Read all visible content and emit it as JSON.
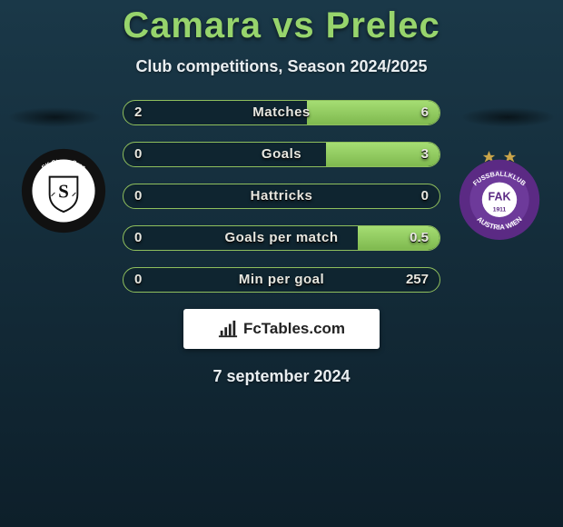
{
  "title": "Camara vs Prelec",
  "subtitle": "Club competitions, Season 2024/2025",
  "date": "7 september 2024",
  "brand": {
    "text": "FcTables.com"
  },
  "colors": {
    "accent_green": "#97d46c",
    "bar_border": "#8fbf5d",
    "bar_fill_top": "#a5dd73",
    "bar_fill_bottom": "#7fb94f",
    "bg_top": "#1a3848",
    "bg_bottom": "#0d1f2a",
    "text_light": "#e9eef1"
  },
  "left_club": {
    "name": "SK Sturm Graz",
    "ring_color": "#111111",
    "inner_bg": "#ffffff",
    "monogram": "S"
  },
  "right_club": {
    "name": "FK Austria Wien",
    "ring_color": "#5b2a84",
    "inner_bg": "#6d3a9a",
    "text_top": "FUSSBALLKLUB",
    "text_bottom": "AUSTRIA WIEN",
    "monogram": "FAK",
    "year": "1911",
    "has_stars": true,
    "star_color": "#caa54a"
  },
  "bars": [
    {
      "label": "Matches",
      "left": "2",
      "right": "6",
      "left_pct": 0,
      "right_pct": 42
    },
    {
      "label": "Goals",
      "left": "0",
      "right": "3",
      "left_pct": 0,
      "right_pct": 36
    },
    {
      "label": "Hattricks",
      "left": "0",
      "right": "0",
      "left_pct": 0,
      "right_pct": 0
    },
    {
      "label": "Goals per match",
      "left": "0",
      "right": "0.5",
      "left_pct": 0,
      "right_pct": 26
    },
    {
      "label": "Min per goal",
      "left": "0",
      "right": "257",
      "left_pct": 0,
      "right_pct": 0
    }
  ]
}
